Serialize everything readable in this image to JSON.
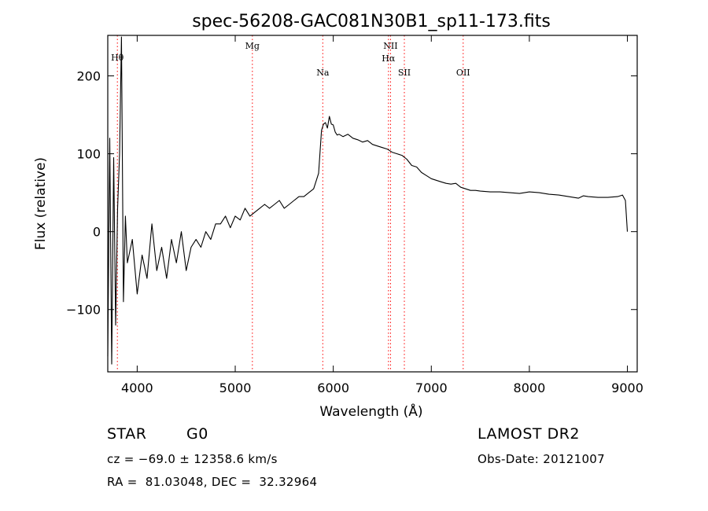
{
  "chart_data": {
    "type": "line",
    "title": "spec-56208-GAC081N30B1_sp11-173.fits",
    "xlabel": "Wavelength (Å)",
    "ylabel": "Flux (relative)",
    "xlim": [
      3700,
      9100
    ],
    "ylim": [
      -180,
      252
    ],
    "xticks": [
      4000,
      5000,
      6000,
      7000,
      8000,
      9000
    ],
    "yticks": [
      -100,
      0,
      100,
      200
    ],
    "grid": false,
    "line_color": "#000000",
    "marker_color": "#ff0000",
    "emission_lines": [
      {
        "label": "Hθ",
        "wavelength": 3798
      },
      {
        "label": "Mg",
        "wavelength": 5175
      },
      {
        "label": "Na",
        "wavelength": 5893
      },
      {
        "label": "NII",
        "wavelength": 6584
      },
      {
        "label": "Hα",
        "wavelength": 6563
      },
      {
        "label": "SII",
        "wavelength": 6725
      },
      {
        "label": "OII",
        "wavelength": 7325
      }
    ],
    "series": [
      {
        "x": [
          3700,
          3720,
          3740,
          3760,
          3780,
          3800,
          3820,
          3840,
          3860,
          3880,
          3900,
          3950,
          4000,
          4050,
          4100,
          4150,
          4200,
          4250,
          4300,
          4350,
          4400,
          4450,
          4500,
          4550,
          4600,
          4650,
          4700,
          4750,
          4800,
          4850,
          4900,
          4950,
          5000,
          5050,
          5100,
          5150,
          5200,
          5250,
          5300,
          5350,
          5400,
          5450,
          5500,
          5550,
          5600,
          5650,
          5700,
          5750,
          5800,
          5850,
          5880,
          5900,
          5920,
          5940,
          5960,
          5980,
          6000,
          6020,
          6040,
          6060,
          6100,
          6150,
          6200,
          6250,
          6300,
          6350,
          6400,
          6450,
          6500,
          6550,
          6600,
          6650,
          6700,
          6750,
          6800,
          6850,
          6900,
          6950,
          7000,
          7050,
          7100,
          7150,
          7200,
          7250,
          7300,
          7350,
          7400,
          7450,
          7500,
          7600,
          7700,
          7800,
          7900,
          8000,
          8100,
          8200,
          8300,
          8400,
          8500,
          8550,
          8600,
          8700,
          8800,
          8900,
          8950,
          8980,
          9000
        ],
        "y": [
          -160,
          120,
          -170,
          95,
          -120,
          30,
          100,
          250,
          -90,
          20,
          -40,
          -10,
          -80,
          -30,
          -60,
          10,
          -50,
          -20,
          -60,
          -10,
          -40,
          0,
          -50,
          -20,
          -10,
          -20,
          0,
          -10,
          10,
          10,
          20,
          5,
          20,
          15,
          30,
          20,
          25,
          30,
          35,
          30,
          35,
          40,
          30,
          35,
          40,
          45,
          45,
          50,
          55,
          75,
          130,
          138,
          140,
          133,
          148,
          138,
          137,
          128,
          124,
          125,
          122,
          125,
          120,
          118,
          115,
          117,
          112,
          110,
          108,
          106,
          102,
          100,
          98,
          93,
          85,
          83,
          76,
          72,
          68,
          66,
          64,
          62,
          61,
          62,
          57,
          55,
          53,
          53,
          52,
          51,
          51,
          50,
          49,
          51,
          50,
          48,
          47,
          45,
          43,
          46,
          45,
          44,
          44,
          45,
          47,
          40,
          0
        ]
      }
    ]
  },
  "info": {
    "class_label": "STAR",
    "subclass_label": "G0",
    "survey_label": "LAMOST DR2",
    "redshift_text": "cz = −69.0 ± 12358.6 km/s",
    "coords_text": "RA =  81.03048, DEC =  32.32964",
    "obsdate_text": "Obs-Date: 20121007"
  }
}
